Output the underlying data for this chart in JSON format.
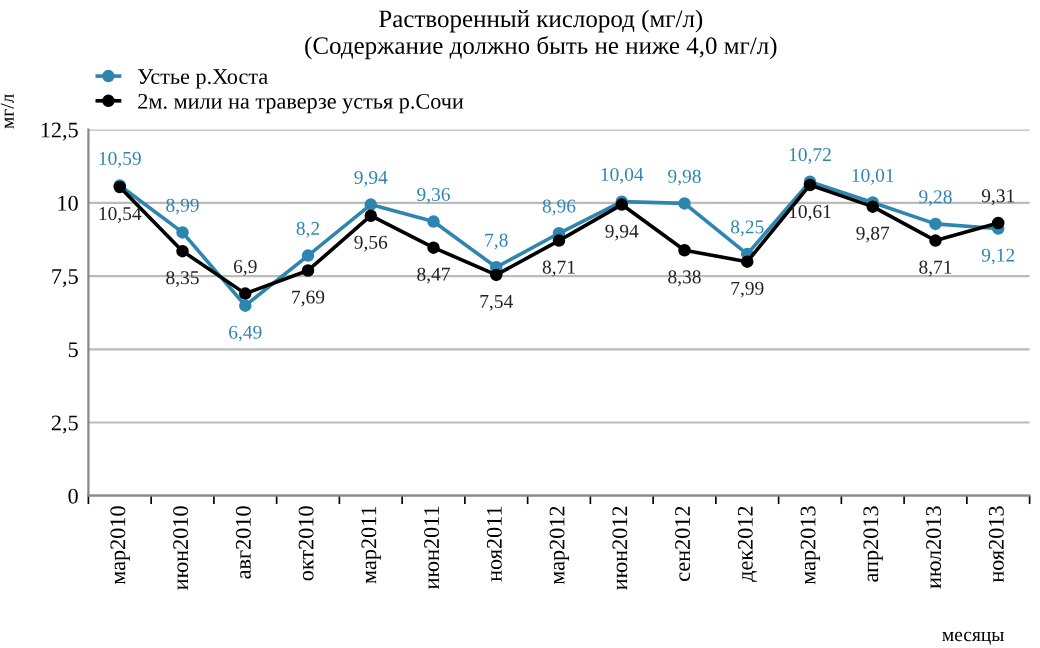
{
  "chart_data": {
    "type": "line",
    "title": "Растворенный кислород (мг/л)\n(Содержание должно быть не ниже 4,0 мг/л)",
    "xlabel": "месяцы",
    "ylabel": "мг/л",
    "categories": [
      "мар2010",
      "июн2010",
      "авг2010",
      "окт2010",
      "мар2011",
      "июн2011",
      "ноя2011",
      "мар2012",
      "июн2012",
      "сен2012",
      "дек2012",
      "мар2013",
      "апр2013",
      "июл2013",
      "ноя2013"
    ],
    "series": [
      {
        "name": "Устье р.Хоста",
        "color": "#2e86b0",
        "values": [
          10.59,
          8.99,
          6.49,
          8.2,
          9.94,
          9.36,
          7.8,
          8.96,
          10.04,
          9.98,
          8.25,
          10.72,
          10.01,
          9.28,
          9.12
        ],
        "value_labels": [
          "10,59",
          "8,99",
          "6,49",
          "8,2",
          "9,94",
          "9,36",
          "7,8",
          "8,96",
          "10,04",
          "9,98",
          "8,25",
          "10,72",
          "10,01",
          "9,28",
          "9,12"
        ]
      },
      {
        "name": "2м. мили на траверзе устья р.Сочи",
        "color": "#000000",
        "values": [
          10.54,
          8.35,
          6.9,
          7.69,
          9.56,
          8.47,
          7.54,
          8.71,
          9.94,
          8.38,
          7.99,
          10.61,
          9.87,
          8.71,
          9.31
        ],
        "value_labels": [
          "10,54",
          "8,35",
          "6,9",
          "7,69",
          "9,56",
          "8,47",
          "7,54",
          "8,71",
          "9,94",
          "8,38",
          "7,99",
          "10,61",
          "9,87",
          "8,71",
          "9,31"
        ]
      }
    ],
    "ylim": [
      0,
      12.5
    ],
    "yticks": [
      0,
      {
        "value": 2.5,
        "label": "2,5"
      },
      5,
      {
        "value": 7.5,
        "label": "7,5"
      },
      10,
      {
        "value": 12.5,
        "label": "12,5"
      }
    ],
    "grid": "y",
    "legend": "top left",
    "marker": "circle",
    "line_style": "solid"
  }
}
